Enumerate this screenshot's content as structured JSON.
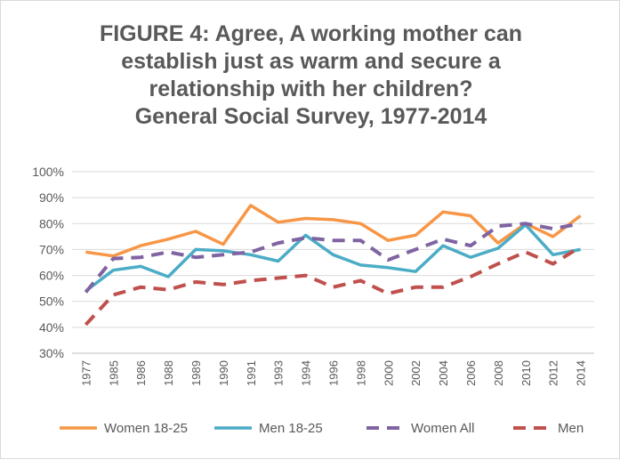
{
  "chart_data": {
    "type": "line",
    "title_lines": [
      "FIGURE 4: Agree, A working mother can",
      "establish just as warm and secure a",
      "relationship with her children?",
      "General Social Survey, 1977-2014"
    ],
    "categories": [
      "1977",
      "1985",
      "1986",
      "1988",
      "1989",
      "1990",
      "1991",
      "1993",
      "1994",
      "1996",
      "1998",
      "2000",
      "2002",
      "2004",
      "2006",
      "2008",
      "2010",
      "2012",
      "2014"
    ],
    "ylim": [
      30,
      100
    ],
    "yticks": [
      30,
      40,
      50,
      60,
      70,
      80,
      90,
      100
    ],
    "ytick_labels": [
      "30%",
      "40%",
      "50%",
      "60%",
      "70%",
      "80%",
      "90%",
      "100%"
    ],
    "grid": true,
    "legend_position": "bottom",
    "series": [
      {
        "name": "Women 18-25",
        "color": "#f79646",
        "dash": "solid",
        "values": [
          69,
          67.5,
          71.5,
          74,
          77,
          72,
          87,
          80.5,
          82,
          81.5,
          80,
          73.5,
          75.5,
          84.5,
          83,
          72.5,
          80,
          75,
          83
        ]
      },
      {
        "name": "Men 18-25",
        "color": "#4bacc6",
        "dash": "solid",
        "values": [
          54,
          62,
          63.5,
          59.5,
          70,
          69.5,
          68,
          65.5,
          75.5,
          68,
          64,
          63,
          61.5,
          71.5,
          67,
          70.5,
          79.5,
          68,
          70
        ]
      },
      {
        "name": "Women All",
        "color": "#8064a2",
        "dash": "dashed",
        "values": [
          53.5,
          66.5,
          67,
          69,
          67,
          68,
          69,
          72.5,
          74.5,
          73.5,
          73.5,
          66,
          70,
          74,
          71.5,
          79,
          80,
          78,
          80
        ]
      },
      {
        "name": "Men",
        "color": "#c0504d",
        "dash": "dashed",
        "values": [
          41,
          52.5,
          55.5,
          54.5,
          57.5,
          56.5,
          58,
          59,
          60,
          55.5,
          58,
          53,
          55.5,
          55.5,
          59.5,
          64.5,
          69,
          64.5,
          71
        ]
      }
    ]
  }
}
